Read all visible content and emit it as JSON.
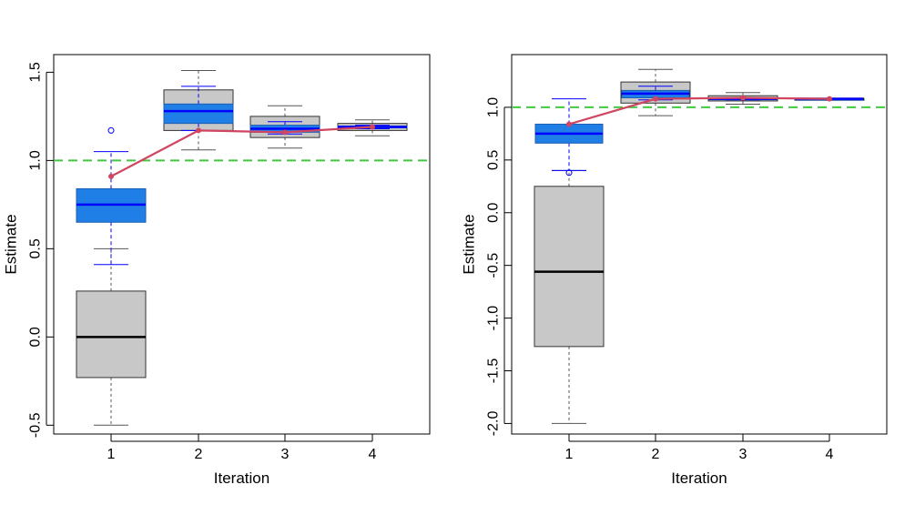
{
  "chart_data": [
    {
      "type": "box",
      "title": "",
      "xlabel": "Iteration",
      "ylabel": "Estimate",
      "categories": [
        "1",
        "2",
        "3",
        "4"
      ],
      "ylim": [
        -0.55,
        1.6
      ],
      "yticks": [
        -0.5,
        0.0,
        0.5,
        1.0,
        1.5
      ],
      "ytick_labels": [
        "-0.5",
        "0.0",
        "0.5",
        "1.0",
        "1.5"
      ],
      "reference_line": {
        "y": 1.0,
        "color": "#44c744",
        "style": "dashed"
      },
      "series": [
        {
          "name": "gray",
          "fill": "#c8c8c8",
          "median_color": "#000000",
          "whisker_color": "#555555",
          "boxes": [
            {
              "lower_whisker": -0.5,
              "q1": -0.23,
              "median": 0.0,
              "q3": 0.26,
              "upper_whisker": 0.5
            },
            {
              "lower_whisker": 1.06,
              "q1": 1.17,
              "median": 1.28,
              "q3": 1.4,
              "upper_whisker": 1.51
            },
            {
              "lower_whisker": 1.07,
              "q1": 1.13,
              "median": 1.19,
              "q3": 1.25,
              "upper_whisker": 1.31
            },
            {
              "lower_whisker": 1.14,
              "q1": 1.17,
              "median": 1.19,
              "q3": 1.21,
              "upper_whisker": 1.23
            }
          ]
        },
        {
          "name": "blue",
          "fill": "#1f7fe6",
          "median_color": "#0000ff",
          "whisker_color": "#0000ff",
          "boxes": [
            {
              "lower_whisker": 0.41,
              "q1": 0.65,
              "median": 0.75,
              "q3": 0.84,
              "upper_whisker": 1.05,
              "outliers": [
                1.17
              ]
            },
            {
              "lower_whisker": 1.17,
              "q1": 1.21,
              "median": 1.28,
              "q3": 1.32,
              "upper_whisker": 1.42
            },
            {
              "lower_whisker": 1.15,
              "q1": 1.16,
              "median": 1.18,
              "q3": 1.2,
              "upper_whisker": 1.22
            },
            {
              "lower_whisker": 1.18,
              "q1": 1.185,
              "median": 1.19,
              "q3": 1.195,
              "upper_whisker": 1.2
            }
          ]
        }
      ],
      "mean_line": {
        "name": "mean",
        "color": "#d0455f",
        "values": [
          0.91,
          1.17,
          1.16,
          1.19
        ]
      }
    },
    {
      "type": "box",
      "title": "",
      "xlabel": "Iteration",
      "ylabel": "Estimate",
      "categories": [
        "1",
        "2",
        "3",
        "4"
      ],
      "ylim": [
        -2.1,
        1.5
      ],
      "yticks": [
        -2.0,
        -1.5,
        -1.0,
        -0.5,
        0.0,
        0.5,
        1.0
      ],
      "ytick_labels": [
        "-2.0",
        "-1.5",
        "-1.0",
        "-0.5",
        "0.0",
        "0.5",
        "1.0"
      ],
      "reference_line": {
        "y": 1.0,
        "color": "#44c744",
        "style": "dashed"
      },
      "series": [
        {
          "name": "gray",
          "fill": "#c8c8c8",
          "median_color": "#000000",
          "whisker_color": "#555555",
          "boxes": [
            {
              "lower_whisker": -2.0,
              "q1": -1.27,
              "median": -0.56,
              "q3": 0.25,
              "upper_whisker": 0.4
            },
            {
              "lower_whisker": 0.92,
              "q1": 1.04,
              "median": 1.12,
              "q3": 1.24,
              "upper_whisker": 1.36
            },
            {
              "lower_whisker": 1.03,
              "q1": 1.06,
              "median": 1.08,
              "q3": 1.11,
              "upper_whisker": 1.14
            },
            {
              "lower_whisker": 1.08,
              "q1": 1.08,
              "median": 1.08,
              "q3": 1.08,
              "upper_whisker": 1.08
            }
          ]
        },
        {
          "name": "blue",
          "fill": "#1f7fe6",
          "median_color": "#0000ff",
          "whisker_color": "#0000ff",
          "boxes": [
            {
              "lower_whisker": 0.4,
              "q1": 0.66,
              "median": 0.75,
              "q3": 0.84,
              "upper_whisker": 1.08,
              "outliers": [
                0.38
              ]
            },
            {
              "lower_whisker": 1.07,
              "q1": 1.09,
              "median": 1.13,
              "q3": 1.16,
              "upper_whisker": 1.2
            },
            {
              "lower_whisker": 1.07,
              "q1": 1.075,
              "median": 1.08,
              "q3": 1.085,
              "upper_whisker": 1.09
            },
            {
              "lower_whisker": 1.08,
              "q1": 1.08,
              "median": 1.08,
              "q3": 1.08,
              "upper_whisker": 1.08
            }
          ]
        }
      ],
      "mean_line": {
        "name": "mean",
        "color": "#d0455f",
        "values": [
          0.84,
          1.08,
          1.09,
          1.08
        ]
      }
    }
  ]
}
